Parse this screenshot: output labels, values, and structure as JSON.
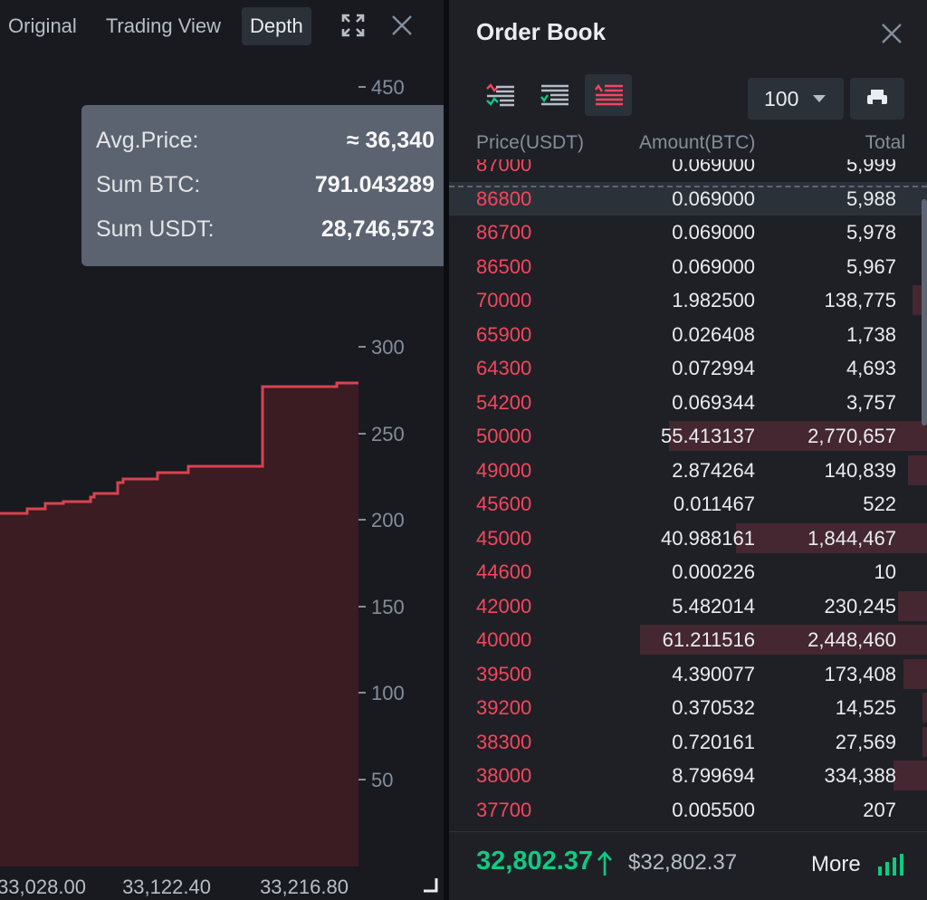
{
  "chart": {
    "tabs": [
      "Original",
      "Trading View",
      "Depth"
    ],
    "active_tab": "Depth",
    "y_ticks": [
      "450",
      "300",
      "250",
      "200",
      "150",
      "100",
      "50"
    ],
    "x_ticks": [
      "33,028.00",
      "33,122.40",
      "33,216.80"
    ],
    "tooltip": {
      "avg_price_label": "Avg.Price:",
      "avg_price_value": "≈ 36,340",
      "sum_btc_label": "Sum BTC:",
      "sum_btc_value": "791.043289",
      "sum_usdt_label": "Sum USDT:",
      "sum_usdt_value": "28,746,573"
    },
    "colors": {
      "ask_line": "#d9434f",
      "ask_fill": "#3a1c22"
    }
  },
  "order_book": {
    "title": "Order Book",
    "precision": "100",
    "headers": {
      "price": "Price(USDT)",
      "amount": "Amount(BTC)",
      "total": "Total"
    },
    "asks": [
      {
        "price": "87000",
        "amount": "0.069000",
        "total": "5,999",
        "depth": 0.0
      },
      {
        "price": "86800",
        "amount": "0.069000",
        "total": "5,988",
        "depth": 0.0
      },
      {
        "price": "86700",
        "amount": "0.069000",
        "total": "5,978",
        "depth": 0.0
      },
      {
        "price": "86500",
        "amount": "0.069000",
        "total": "5,967",
        "depth": 0.0
      },
      {
        "price": "70000",
        "amount": "1.982500",
        "total": "138,775",
        "depth": 0.03
      },
      {
        "price": "65900",
        "amount": "0.026408",
        "total": "1,738",
        "depth": 0.0
      },
      {
        "price": "64300",
        "amount": "0.072994",
        "total": "4,693",
        "depth": 0.0
      },
      {
        "price": "54200",
        "amount": "0.069344",
        "total": "3,757",
        "depth": 0.0
      },
      {
        "price": "50000",
        "amount": "55.413137",
        "total": "2,770,657",
        "depth": 0.54
      },
      {
        "price": "49000",
        "amount": "2.874264",
        "total": "140,839",
        "depth": 0.04
      },
      {
        "price": "45600",
        "amount": "0.011467",
        "total": "522",
        "depth": 0.0
      },
      {
        "price": "45000",
        "amount": "40.988161",
        "total": "1,844,467",
        "depth": 0.4
      },
      {
        "price": "44600",
        "amount": "0.000226",
        "total": "10",
        "depth": 0.0
      },
      {
        "price": "42000",
        "amount": "5.482014",
        "total": "230,245",
        "depth": 0.06
      },
      {
        "price": "40000",
        "amount": "61.211516",
        "total": "2,448,460",
        "depth": 0.6
      },
      {
        "price": "39500",
        "amount": "4.390077",
        "total": "173,408",
        "depth": 0.05
      },
      {
        "price": "39200",
        "amount": "0.370532",
        "total": "14,525",
        "depth": 0.01
      },
      {
        "price": "38300",
        "amount": "0.720161",
        "total": "27,569",
        "depth": 0.01
      },
      {
        "price": "38000",
        "amount": "8.799694",
        "total": "334,388",
        "depth": 0.07
      },
      {
        "price": "37700",
        "amount": "0.005500",
        "total": "207",
        "depth": 0.0
      }
    ],
    "hover_row_index": 1,
    "last_price": "32,802.37",
    "mark_price": "$32,802.37",
    "more_label": "More",
    "colors": {
      "ask": "#f6465d",
      "bid": "#0ecb81"
    }
  }
}
